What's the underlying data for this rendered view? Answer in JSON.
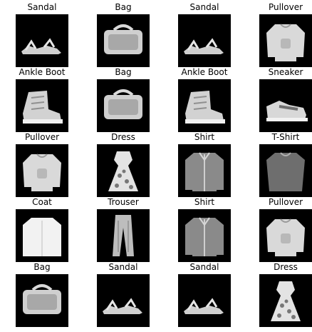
{
  "grid": {
    "items": [
      {
        "label": "Sandal",
        "icon": "sandal-icon"
      },
      {
        "label": "Bag",
        "icon": "bag-icon"
      },
      {
        "label": "Sandal",
        "icon": "sandal-icon"
      },
      {
        "label": "Pullover",
        "icon": "pullover-icon"
      },
      {
        "label": "Ankle Boot",
        "icon": "ankle-boot-icon"
      },
      {
        "label": "Bag",
        "icon": "bag-icon"
      },
      {
        "label": "Ankle Boot",
        "icon": "ankle-boot-icon"
      },
      {
        "label": "Sneaker",
        "icon": "sneaker-icon"
      },
      {
        "label": "Pullover",
        "icon": "pullover-icon"
      },
      {
        "label": "Dress",
        "icon": "dress-icon"
      },
      {
        "label": "Shirt",
        "icon": "shirt-icon"
      },
      {
        "label": "T-Shirt",
        "icon": "tshirt-icon"
      },
      {
        "label": "Coat",
        "icon": "coat-icon"
      },
      {
        "label": "Trouser",
        "icon": "trouser-icon"
      },
      {
        "label": "Shirt",
        "icon": "shirt-icon"
      },
      {
        "label": "Pullover",
        "icon": "pullover-icon"
      },
      {
        "label": "Bag",
        "icon": "bag-icon"
      },
      {
        "label": "Sandal",
        "icon": "sandal-icon"
      },
      {
        "label": "Sandal",
        "icon": "sandal-icon"
      },
      {
        "label": "Dress",
        "icon": "dress-icon"
      }
    ]
  }
}
